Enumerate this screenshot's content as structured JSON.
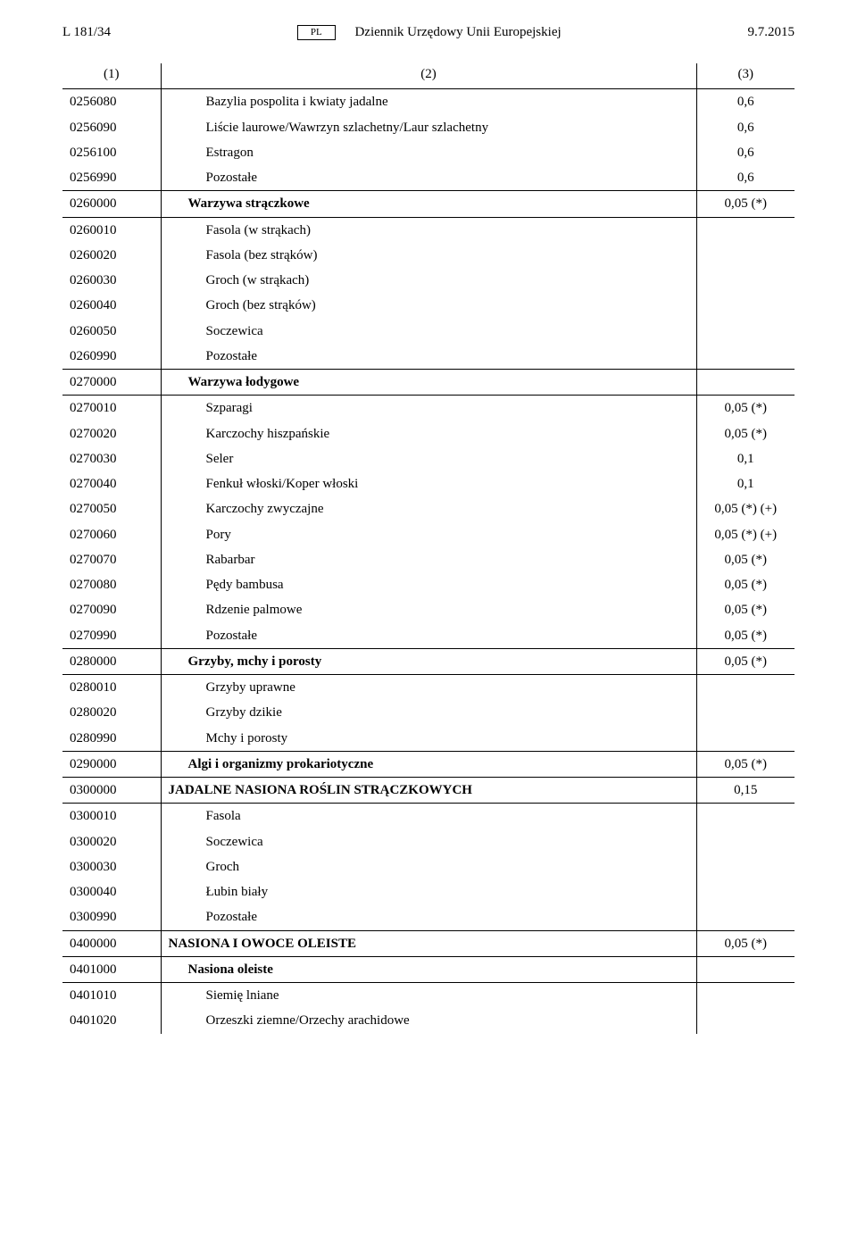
{
  "header": {
    "left": "L 181/34",
    "lang": "PL",
    "center": "Dziennik Urzędowy Unii Europejskiej",
    "right": "9.7.2015"
  },
  "columns": {
    "c1": "(1)",
    "c2": "(2)",
    "c3": "(3)"
  },
  "rows": [
    {
      "type": "data",
      "code": "0256080",
      "name": "Bazylia pospolita i kwiaty jadalne",
      "val": "0,6",
      "indent": 2
    },
    {
      "type": "data",
      "code": "0256090",
      "name": "Liście laurowe/Wawrzyn szlachetny/Laur szlachetny",
      "val": "0,6",
      "indent": 2
    },
    {
      "type": "data",
      "code": "0256100",
      "name": "Estragon",
      "val": "0,6",
      "indent": 2
    },
    {
      "type": "data",
      "code": "0256990",
      "name": "Pozostałe",
      "val": "0,6",
      "indent": 2
    },
    {
      "type": "section",
      "code": "0260000",
      "name": "Warzywa strączkowe",
      "val": "0,05 (*)",
      "indent": 1,
      "bold": true
    },
    {
      "type": "data",
      "code": "0260010",
      "name": "Fasola (w strąkach)",
      "val": "",
      "indent": 2
    },
    {
      "type": "data",
      "code": "0260020",
      "name": "Fasola (bez strąków)",
      "val": "",
      "indent": 2
    },
    {
      "type": "data",
      "code": "0260030",
      "name": "Groch (w strąkach)",
      "val": "",
      "indent": 2
    },
    {
      "type": "data",
      "code": "0260040",
      "name": "Groch (bez strąków)",
      "val": "",
      "indent": 2
    },
    {
      "type": "data",
      "code": "0260050",
      "name": "Soczewica",
      "val": "",
      "indent": 2
    },
    {
      "type": "data",
      "code": "0260990",
      "name": "Pozostałe",
      "val": "",
      "indent": 2
    },
    {
      "type": "section",
      "code": "0270000",
      "name": "Warzywa łodygowe",
      "val": "",
      "indent": 1,
      "bold": true
    },
    {
      "type": "data",
      "code": "0270010",
      "name": "Szparagi",
      "val": "0,05 (*)",
      "indent": 2
    },
    {
      "type": "data",
      "code": "0270020",
      "name": "Karczochy hiszpańskie",
      "val": "0,05 (*)",
      "indent": 2
    },
    {
      "type": "data",
      "code": "0270030",
      "name": "Seler",
      "val": "0,1",
      "indent": 2
    },
    {
      "type": "data",
      "code": "0270040",
      "name": "Fenkuł włoski/Koper włoski",
      "val": "0,1",
      "indent": 2
    },
    {
      "type": "data",
      "code": "0270050",
      "name": "Karczochy zwyczajne",
      "val": "0,05 (*) (+)",
      "indent": 2
    },
    {
      "type": "data",
      "code": "0270060",
      "name": "Pory",
      "val": "0,05 (*) (+)",
      "indent": 2
    },
    {
      "type": "data",
      "code": "0270070",
      "name": "Rabarbar",
      "val": "0,05 (*)",
      "indent": 2
    },
    {
      "type": "data",
      "code": "0270080",
      "name": "Pędy bambusa",
      "val": "0,05 (*)",
      "indent": 2
    },
    {
      "type": "data",
      "code": "0270090",
      "name": "Rdzenie palmowe",
      "val": "0,05 (*)",
      "indent": 2
    },
    {
      "type": "data",
      "code": "0270990",
      "name": "Pozostałe",
      "val": "0,05 (*)",
      "indent": 2
    },
    {
      "type": "section",
      "code": "0280000",
      "name": "Grzyby, mchy i porosty",
      "val": "0,05 (*)",
      "indent": 1,
      "bold": true
    },
    {
      "type": "data",
      "code": "0280010",
      "name": "Grzyby uprawne",
      "val": "",
      "indent": 2
    },
    {
      "type": "data",
      "code": "0280020",
      "name": "Grzyby dzikie",
      "val": "",
      "indent": 2
    },
    {
      "type": "data",
      "code": "0280990",
      "name": "Mchy i porosty",
      "val": "",
      "indent": 2
    },
    {
      "type": "section",
      "code": "0290000",
      "name": "Algi i organizmy prokariotyczne",
      "val": "0,05 (*)",
      "indent": 1,
      "bold": true
    },
    {
      "type": "section",
      "code": "0300000",
      "name": "JADALNE NASIONA ROŚLIN STRĄCZKOWYCH",
      "val": "0,15",
      "indent": 0,
      "bold": true
    },
    {
      "type": "data",
      "code": "0300010",
      "name": "Fasola",
      "val": "",
      "indent": 2
    },
    {
      "type": "data",
      "code": "0300020",
      "name": "Soczewica",
      "val": "",
      "indent": 2
    },
    {
      "type": "data",
      "code": "0300030",
      "name": "Groch",
      "val": "",
      "indent": 2
    },
    {
      "type": "data",
      "code": "0300040",
      "name": "Łubin biały",
      "val": "",
      "indent": 2
    },
    {
      "type": "data",
      "code": "0300990",
      "name": "Pozostałe",
      "val": "",
      "indent": 2
    },
    {
      "type": "section",
      "code": "0400000",
      "name": "NASIONA I OWOCE OLEISTE",
      "val": "0,05 (*)",
      "indent": 0,
      "bold": true
    },
    {
      "type": "section",
      "code": "0401000",
      "name": "Nasiona oleiste",
      "val": "",
      "indent": 1,
      "bold": true
    },
    {
      "type": "data",
      "code": "0401010",
      "name": "Siemię lniane",
      "val": "",
      "indent": 2
    },
    {
      "type": "data",
      "code": "0401020",
      "name": "Orzeszki ziemne/Orzechy arachidowe",
      "val": "",
      "indent": 2
    }
  ]
}
